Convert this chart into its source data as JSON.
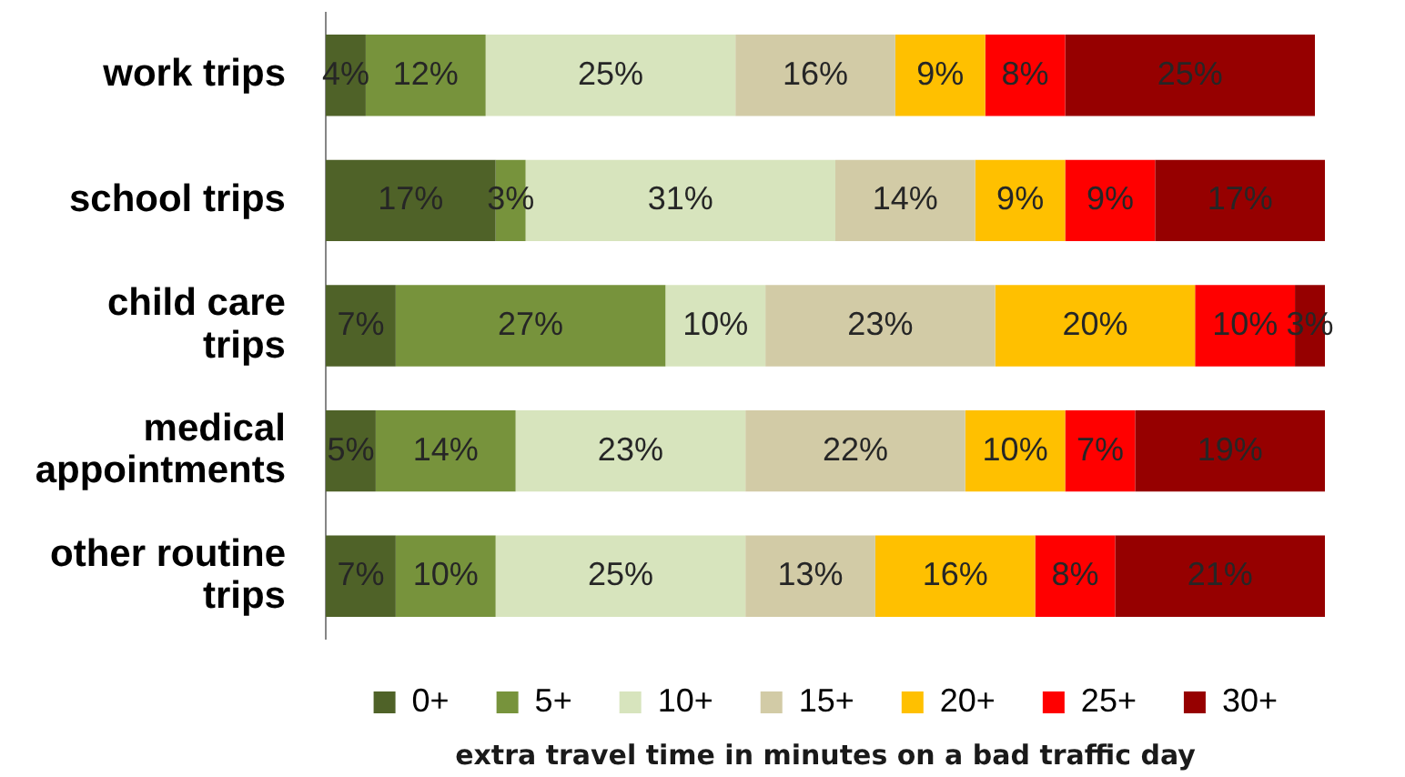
{
  "chart_data": {
    "type": "bar",
    "orientation": "horizontal",
    "stacked": true,
    "categories": [
      "work trips",
      "school trips",
      "child care trips",
      "medical appointments",
      "other routine trips"
    ],
    "series": [
      {
        "name": "0+",
        "color": "#4f6228",
        "values": [
          4,
          17,
          7,
          5,
          7
        ],
        "value_labels": [
          "4%",
          "17%",
          "7%",
          "5%",
          "7%"
        ]
      },
      {
        "name": "5+",
        "color": "#77933c",
        "values": [
          12,
          3,
          27,
          14,
          10
        ],
        "value_labels": [
          "12%",
          "3%",
          "27%",
          "14%",
          "10%"
        ]
      },
      {
        "name": "10+",
        "color": "#d7e4bd",
        "values": [
          25,
          31,
          10,
          23,
          25
        ],
        "value_labels": [
          "25%",
          "31%",
          "10%",
          "23%",
          "25%"
        ]
      },
      {
        "name": "15+",
        "color": "#d2cba6",
        "values": [
          16,
          14,
          23,
          22,
          13
        ],
        "value_labels": [
          "16%",
          "14%",
          "23%",
          "22%",
          "13%"
        ]
      },
      {
        "name": "20+",
        "color": "#ffc000",
        "values": [
          9,
          9,
          20,
          10,
          16
        ],
        "value_labels": [
          "9%",
          "9%",
          "20%",
          "10%",
          "16%"
        ]
      },
      {
        "name": "25+",
        "color": "#ff0000",
        "values": [
          8,
          9,
          10,
          7,
          8
        ],
        "value_labels": [
          "8%",
          "9%",
          "10%",
          "7%",
          "8%"
        ]
      },
      {
        "name": "30+",
        "color": "#960000",
        "values": [
          25,
          17,
          3,
          19,
          21
        ],
        "value_labels": [
          "25%",
          "17%",
          "3%",
          "19%",
          "21%"
        ]
      }
    ],
    "xlim": [
      0,
      100
    ],
    "xlabel": "extra travel time in minutes on a bad traffic day",
    "legend": "bottom",
    "tick_labels": "y"
  }
}
